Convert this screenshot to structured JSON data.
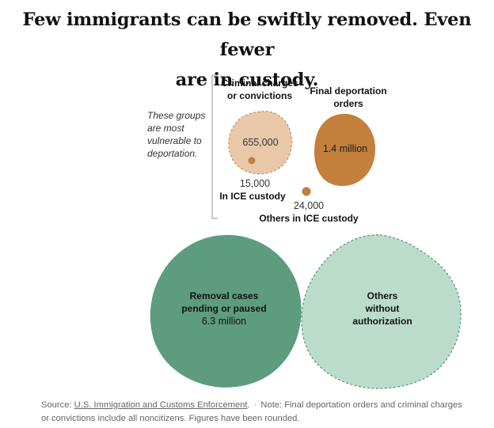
{
  "headline": {
    "line1": "Few immigrants can be swiftly removed. Even fewer",
    "line2": "are in custody."
  },
  "chart_data": {
    "type": "bubble",
    "title": "Few immigrants can be swiftly removed. Even fewer are in custody.",
    "bracket_note": [
      "These groups",
      "are most",
      "vulnerable to",
      "deportation."
    ],
    "bubbles": [
      {
        "id": "criminal",
        "label_lines": [
          "Criminal charges",
          "or convictions"
        ],
        "value_label": "655,000",
        "value": 655000,
        "color": "#e8c8a8",
        "stroke": "#c48a4e",
        "dashed": true
      },
      {
        "id": "final-orders",
        "label_lines": [
          "Final deportation",
          "orders"
        ],
        "value_label": "1.4 million",
        "value": 1400000,
        "color": "#c37f3c",
        "stroke": "#c37f3c",
        "dashed": false
      },
      {
        "id": "ice-custody",
        "label_lines": [
          "In ICE custody"
        ],
        "value_label": "15,000",
        "value": 15000,
        "color": "#c37f3c",
        "stroke": "#c37f3c",
        "dashed": false
      },
      {
        "id": "others-ice",
        "label_lines": [
          "Others in ICE custody"
        ],
        "value_label": "24,000",
        "value": 24000,
        "color": "#c37f3c",
        "stroke": "#c37f3c",
        "dashed": false
      },
      {
        "id": "removal",
        "label_lines": [
          "Removal cases",
          "pending or paused"
        ],
        "value_label": "6.3 million",
        "value": 6300000,
        "color": "#5d9c7f",
        "stroke": "#4f8a6e",
        "dashed": false
      },
      {
        "id": "others-unauth",
        "label_lines": [
          "Others",
          "without",
          "authorization"
        ],
        "value_label": "",
        "value": null,
        "color": "#bcdccb",
        "stroke": "#5d9c7f",
        "dashed": true
      }
    ]
  },
  "footer": {
    "source_prefix": "Source: ",
    "source_link": "U.S. Immigration and Customs Enforcement",
    "source_period": ".",
    "separator": "·",
    "note_line1": "Note: Final deportation orders and criminal charges",
    "note_line2": "or convictions include all noncitizens. Figures have been rounded."
  }
}
